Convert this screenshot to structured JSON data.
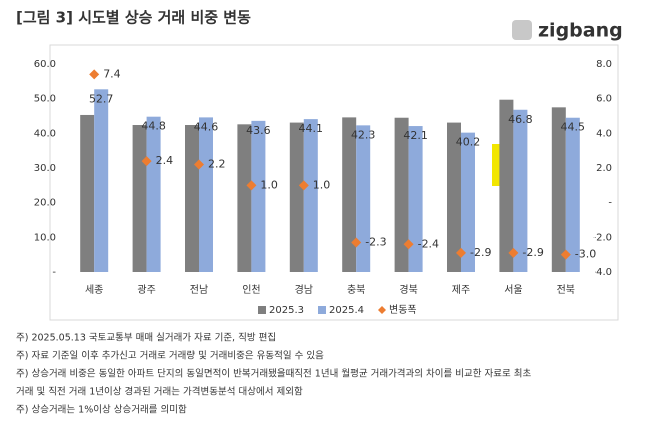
{
  "chart_data": {
    "type": "bar",
    "title": "[그림 3] 시도별 상승 거래 비중 변동",
    "categories": [
      "세종",
      "광주",
      "전남",
      "인천",
      "경남",
      "충북",
      "경북",
      "제주",
      "서울",
      "전북"
    ],
    "series": [
      {
        "name": "2025.3",
        "color": "#7f7f7f",
        "values": [
          45.3,
          42.4,
          42.4,
          42.6,
          43.1,
          44.6,
          44.5,
          43.1,
          49.7,
          47.5
        ]
      },
      {
        "name": "2025.4",
        "color": "#8eaadb",
        "values": [
          52.7,
          44.8,
          44.6,
          43.6,
          44.1,
          42.3,
          42.1,
          40.2,
          46.8,
          44.5
        ],
        "labels": true
      },
      {
        "name": "변동폭",
        "color": "#ed7d31",
        "type": "scatter",
        "axis": "y2",
        "values": [
          7.4,
          2.4,
          2.2,
          1.0,
          1.0,
          -2.3,
          -2.4,
          -2.9,
          -2.9,
          -3.0
        ],
        "value_labels": [
          "7.4",
          "2.4",
          "2.2",
          "1.0",
          "1.0",
          "-2.3",
          "-2.4",
          "-2.9",
          "-2.9",
          "-3.0"
        ]
      }
    ],
    "ylim": [
      0,
      60
    ],
    "yticks": [
      {
        "value": 0,
        "label": "-"
      },
      {
        "value": 10,
        "label": "10.0"
      },
      {
        "value": 20,
        "label": "20.0"
      },
      {
        "value": 30,
        "label": "30.0"
      },
      {
        "value": 40,
        "label": "40.0"
      },
      {
        "value": 50,
        "label": "50.0"
      },
      {
        "value": 60,
        "label": "60.0"
      }
    ],
    "y2lim": [
      -4,
      8
    ],
    "y2ticks": [
      {
        "value": -4,
        "label": "-4.0"
      },
      {
        "value": -2,
        "label": "-2.0"
      },
      {
        "value": 0,
        "label": "-"
      },
      {
        "value": 2,
        "label": "2.0"
      },
      {
        "value": 4,
        "label": "4.0"
      },
      {
        "value": 6,
        "label": "6.0"
      },
      {
        "value": 8,
        "label": "8.0"
      }
    ],
    "legend": "bottom"
  },
  "logo": "zigbang",
  "notes": [
    "주) 2025.05.13 국토교통부 매매 실거래가 자료 기준, 직방 편집",
    "주) 자료 기준일 이후 추가신고 거래로 거래량 및 거래비중은 유동적일 수 있음",
    "주) 상승거래 비중은 동일한 아파트 단지의 동일면적이 반복거래됐을때직전 1년내 월평균 거래가격과의 차이를 비교한 자료로 최초",
    "거래 및 직전 거래 1년이상 경과된 거래는 가격변동분석 대상에서 제외함",
    "주) 상승거래는 1%이상 상승거래를 의미함"
  ]
}
